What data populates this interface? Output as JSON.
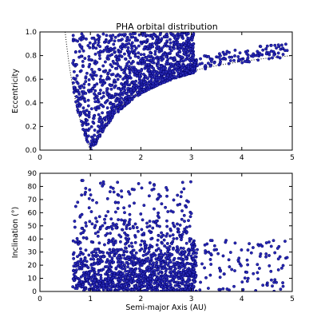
{
  "chart_data": [
    {
      "type": "scatter",
      "title": "PHA orbital distribution",
      "xlabel": "",
      "ylabel": "Eccentricity",
      "xlim": [
        0,
        5
      ],
      "ylim": [
        0.0,
        1.0
      ],
      "xticks": [
        "0",
        "1",
        "2",
        "3",
        "4",
        "5"
      ],
      "yticks": [
        "0.0",
        "0.2",
        "0.4",
        "0.6",
        "0.8",
        "1.0"
      ],
      "point_color": "#2a2ab8",
      "point_edge_color": "#000066",
      "grid": false,
      "series": [
        {
          "kind": "cloud",
          "clusters": [
            {
              "x_range": [
                0.6,
                3.1
              ],
              "e_range": "between boundary curves",
              "weight": 0.75
            },
            {
              "x_range": [
                3.0,
                4.9
              ],
              "y_range": [
                0.72,
                0.82
              ],
              "weight": 0.05
            }
          ],
          "approx_points": 1500
        }
      ],
      "boundary_curves": [
        {
          "formula": "e = 1 - 1.0/a",
          "style": "dotted"
        },
        {
          "formula": "e = 1.0/a - 1",
          "style": "dotted"
        }
      ]
    },
    {
      "type": "scatter",
      "title": "",
      "xlabel": "Semi-major Axis (AU)",
      "ylabel": "Inclination (°)",
      "xlim": [
        0,
        5
      ],
      "ylim": [
        0,
        90
      ],
      "xticks": [
        "0",
        "1",
        "2",
        "3",
        "4",
        "5"
      ],
      "yticks": [
        "0",
        "10",
        "20",
        "30",
        "40",
        "50",
        "60",
        "70",
        "80",
        "90"
      ],
      "point_color": "#2a2ab8",
      "point_edge_color": "#000066",
      "grid": false,
      "series": [
        {
          "kind": "cloud",
          "dense_region": {
            "x_range": [
              0.7,
              3.0
            ],
            "y_range": [
              0,
              30
            ]
          },
          "sparse_region": {
            "x_range": [
              0.5,
              4.9
            ],
            "y_range": [
              0,
              85
            ]
          },
          "approx_points": 1500
        }
      ]
    }
  ]
}
